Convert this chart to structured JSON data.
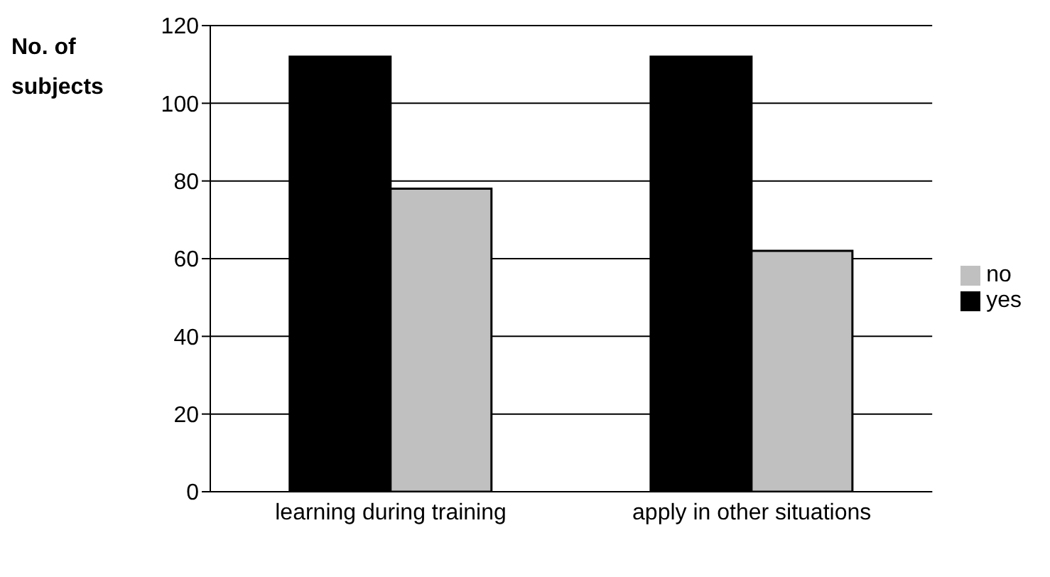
{
  "chart_data": {
    "type": "bar",
    "ylabel": "No. of subjects",
    "categories": [
      "learning during training",
      "apply in other situations"
    ],
    "series": [
      {
        "name": "yes",
        "color": "#000000",
        "values": [
          112,
          112
        ]
      },
      {
        "name": "no",
        "color": "#c0c0c0",
        "values": [
          78,
          62
        ]
      }
    ],
    "ylim": [
      0,
      120
    ],
    "yticks": [
      0,
      20,
      40,
      60,
      80,
      100,
      120
    ],
    "grid": "y",
    "legend": "right"
  }
}
